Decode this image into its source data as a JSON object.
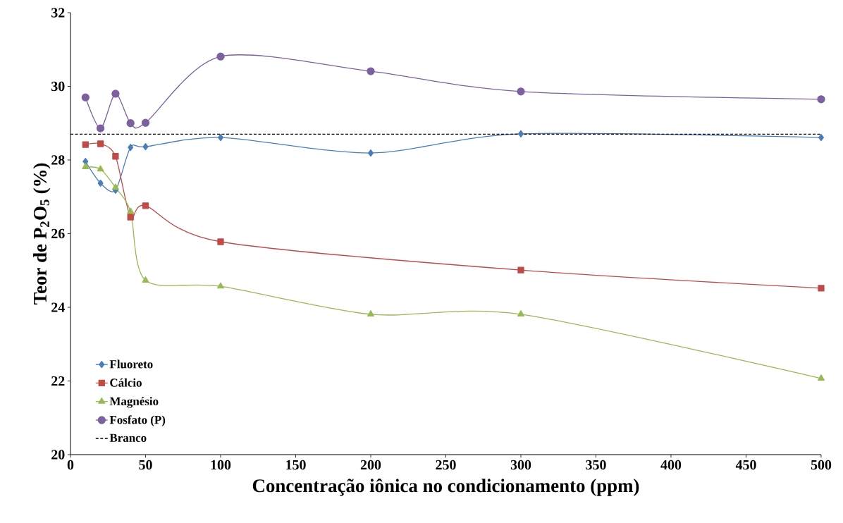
{
  "chart_data": {
    "type": "line",
    "xlabel": "Concentração iônica no condicionamento (ppm)",
    "ylabel": "Teor de P$_{2}$O$_{5}$ (%)",
    "x": [
      10,
      20,
      30,
      40,
      50,
      100,
      200,
      300,
      500
    ],
    "series": [
      {
        "name": "Fluoreto",
        "color": "#4a7ebb",
        "marker": "diamond",
        "values": [
          27.96,
          27.37,
          27.18,
          28.34,
          28.36,
          28.61,
          28.19,
          28.71,
          28.61
        ]
      },
      {
        "name": "Cálcio",
        "color": "#be4b48",
        "marker": "square",
        "values": [
          28.42,
          28.44,
          28.1,
          26.45,
          26.76,
          25.78,
          null,
          25.01,
          24.52
        ]
      },
      {
        "name": "Magnésio",
        "color": "#98b954",
        "marker": "triangle",
        "values": [
          27.81,
          27.75,
          27.25,
          26.6,
          24.73,
          24.57,
          23.81,
          23.81,
          22.07
        ]
      },
      {
        "name": "Fosfato (P)",
        "color": "#7d60a0",
        "marker": "circle",
        "values": [
          29.7,
          28.86,
          29.8,
          29.0,
          29.01,
          30.81,
          30.41,
          29.86,
          29.65
        ]
      }
    ],
    "ref_lines": [
      {
        "axis": "y",
        "value": 28.7,
        "label": "Branco",
        "color": "#000000",
        "line_style": "dashed"
      }
    ],
    "xlim": [
      0,
      500
    ],
    "xticks": [
      0,
      50,
      100,
      150,
      200,
      250,
      300,
      350,
      400,
      450,
      500
    ],
    "ylim": [
      20,
      32
    ],
    "yticks": [
      20,
      22,
      24,
      26,
      28,
      30,
      32
    ],
    "grid": false,
    "legend": "bottom left"
  }
}
